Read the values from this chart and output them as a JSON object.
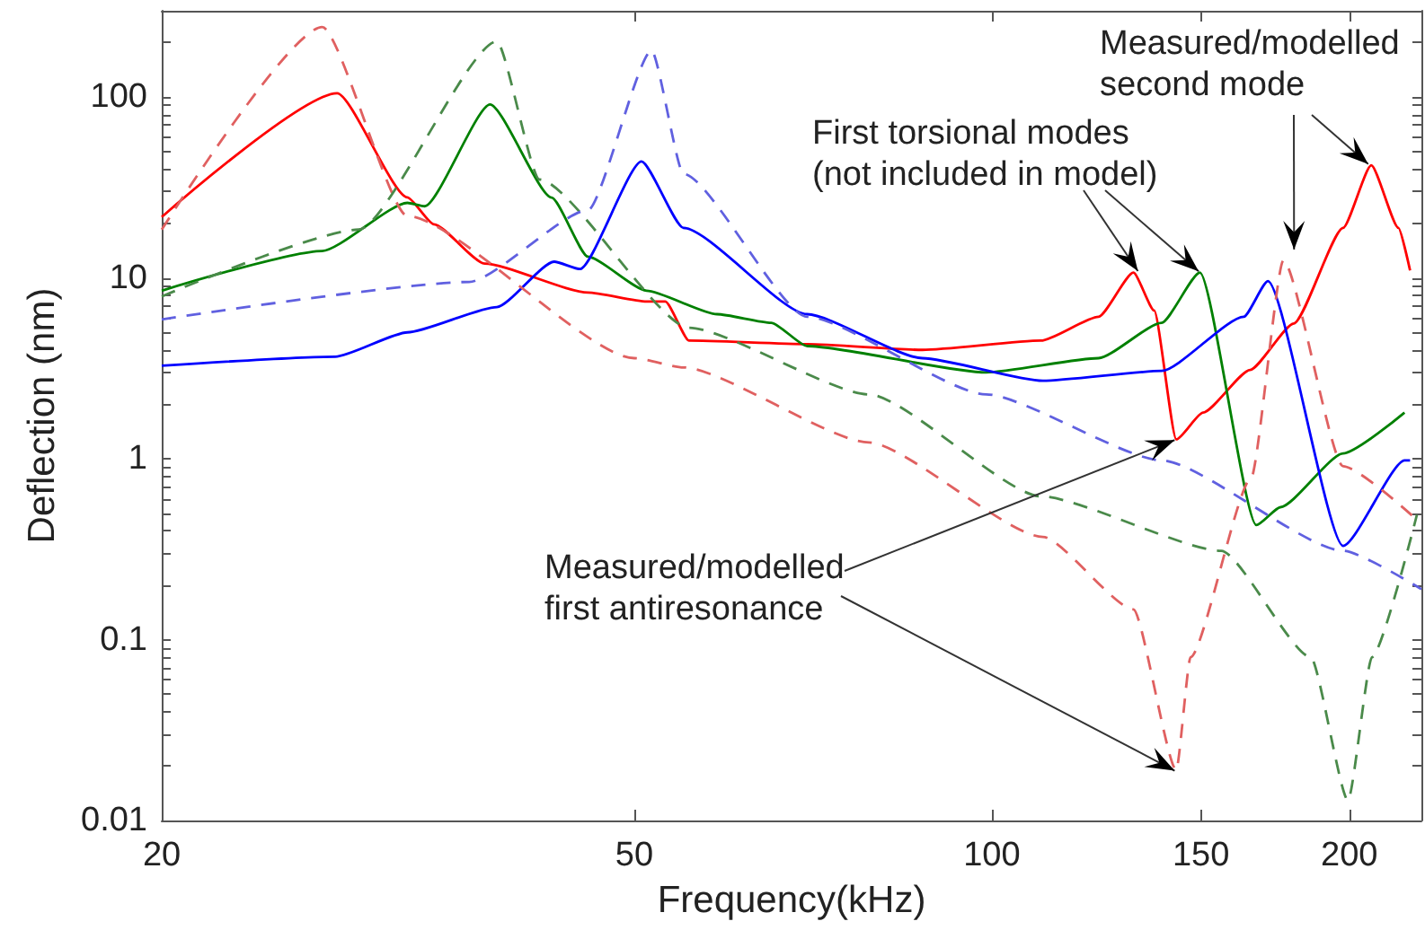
{
  "chart_data": {
    "type": "line",
    "xlabel": "Frequency(kHz)",
    "ylabel": "Deflection (nm)",
    "log": "xy",
    "grid": false,
    "marker": "none",
    "xlim": [
      20,
      230
    ],
    "xticks": [
      20,
      50,
      100,
      150,
      200
    ],
    "ylim": [
      0.01,
      300
    ],
    "yticks": [
      0.01,
      {
        "value": 0.02,
        "label": null
      },
      {
        "value": 0.03,
        "label": null
      },
      {
        "value": 0.04,
        "label": null
      },
      {
        "value": 0.05,
        "label": null
      },
      {
        "value": 0.06,
        "label": null
      },
      {
        "value": 0.07,
        "label": null
      },
      {
        "value": 0.08,
        "label": null
      },
      {
        "value": 0.09,
        "label": null
      },
      0.1,
      {
        "value": 0.2,
        "label": null
      },
      {
        "value": 0.3,
        "label": null
      },
      {
        "value": 0.4,
        "label": null
      },
      {
        "value": 0.5,
        "label": null
      },
      {
        "value": 0.6,
        "label": null
      },
      {
        "value": 0.7,
        "label": null
      },
      {
        "value": 0.8,
        "label": null
      },
      {
        "value": 0.9,
        "label": null
      },
      1,
      {
        "value": 2,
        "label": null
      },
      {
        "value": 3,
        "label": null
      },
      {
        "value": 4,
        "label": null
      },
      {
        "value": 5,
        "label": null
      },
      {
        "value": 6,
        "label": null
      },
      {
        "value": 7,
        "label": null
      },
      {
        "value": 8,
        "label": null
      },
      {
        "value": 9,
        "label": null
      },
      10,
      {
        "value": 20,
        "label": null
      },
      {
        "value": 30,
        "label": null
      },
      {
        "value": 40,
        "label": null
      },
      {
        "value": 50,
        "label": null
      },
      {
        "value": 60,
        "label": null
      },
      {
        "value": 70,
        "label": null
      },
      {
        "value": 80,
        "label": null
      },
      {
        "value": 90,
        "label": null
      },
      100,
      {
        "value": 200,
        "label": null
      },
      {
        "value": 300,
        "label": null
      }
    ],
    "series": [
      {
        "color": "#ff0000",
        "line_style": "solid",
        "x": [
          20,
          28.1,
          32.2,
          33.9,
          37.4,
          45.7,
          51.2,
          53.1,
          55.6,
          69.9,
          87.4,
          110,
          123,
          131.6,
          137,
          143,
          150.6,
          165,
          179.6,
          197.6,
          208.7,
          220,
          225
        ],
        "values": [
          21.7,
          105,
          27.9,
          19.8,
          12,
          8.3,
          7.4,
          7.4,
          4.5,
          4.3,
          4.0,
          4.5,
          6.1,
          10.7,
          6.6,
          1.28,
          1.8,
          3.1,
          5.6,
          18.9,
          42,
          18.9,
          11
        ]
      },
      {
        "color": "#008000",
        "line_style": "solid",
        "x": [
          20,
          27.3,
          32.2,
          33.3,
          37.8,
          42.6,
          45.7,
          51.2,
          58.7,
          65.2,
          69.9,
          98.9,
          123,
          139,
          149.7,
          167,
          175,
          197.6,
          222.6
        ],
        "values": [
          8.5,
          14.1,
          26,
          24.9,
          91,
          27.8,
          13.1,
          8.5,
          6.3,
          5.65,
          4.2,
          3.0,
          3.6,
          5.65,
          10.7,
          0.43,
          0.54,
          1.07,
          1.8
        ]
      },
      {
        "color": "#0000ff",
        "line_style": "solid",
        "x": [
          20,
          28,
          32.2,
          38.3,
          42.8,
          45,
          50.7,
          55,
          69.9,
          87.4,
          110.4,
          139,
          163,
          170.8,
          197.6,
          222.6,
          225
        ],
        "values": [
          3.27,
          3.67,
          5.0,
          6.9,
          12.3,
          11.2,
          44,
          18.9,
          6.3,
          3.6,
          2.7,
          3.06,
          6.1,
          9.6,
          0.33,
          0.98,
          0.98
        ]
      },
      {
        "color": "#e06060",
        "line_style": "dashed",
        "x": [
          20,
          27.3,
          32.2,
          50,
          55,
          78.8,
          110.4,
          131.6,
          143,
          147,
          165.3,
          176,
          197.6,
          228
        ],
        "values": [
          18.5,
          244,
          22,
          3.6,
          3.2,
          1.23,
          0.37,
          0.147,
          0.019,
          0.08,
          0.78,
          12.5,
          0.91,
          0.46
        ]
      },
      {
        "color": "#4a8a4a",
        "line_style": "dashed",
        "x": [
          20,
          29.3,
          38.3,
          41.6,
          55.6,
          78.8,
          110,
          156,
          185.6,
          199.5,
          209,
          228
        ],
        "values": [
          7.9,
          18.5,
          203,
          35,
          5.3,
          2.27,
          0.62,
          0.31,
          0.08,
          0.0129,
          0.08,
          0.49
        ]
      },
      {
        "color": "#6060e0",
        "line_style": "dashed",
        "x": [
          20,
          36.3,
          45.7,
          51.7,
          55,
          69.9,
          98.9,
          139,
          197.6,
          230
        ],
        "values": [
          5.9,
          9.5,
          23.7,
          181,
          37.6,
          6.1,
          2.27,
          0.98,
          0.31,
          0.19
        ]
      }
    ],
    "annotations": [
      {
        "text": "Measured/modelled\nsecond mode",
        "x": 208,
        "y": 42
      },
      {
        "text": "First torsional modes\n(not included in model)",
        "x": 133,
        "y": 10.7
      },
      {
        "text": "Measured/modelled\nfirst antiresonance",
        "x": 143,
        "y": 1.28
      }
    ]
  }
}
